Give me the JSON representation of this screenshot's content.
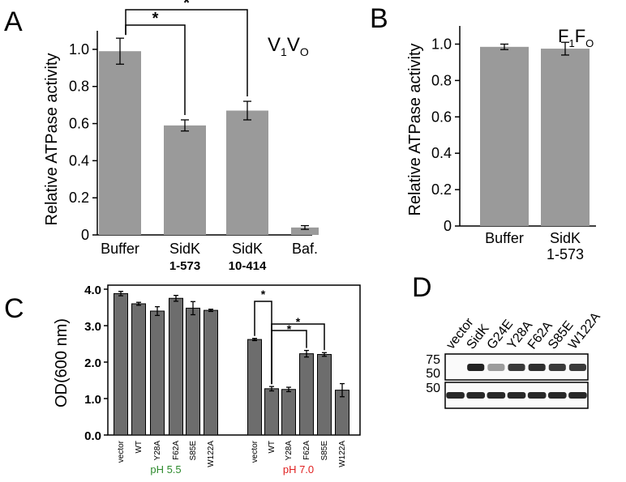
{
  "panels": {
    "A": "A",
    "B": "B",
    "C": "C",
    "D": "D"
  },
  "chart_data": [
    {
      "panel": "A",
      "type": "bar",
      "title_main": "V",
      "title_sub1": "1",
      "title_main2": "V",
      "title_sub2": "O",
      "ylabel": "Relative ATPase activity",
      "ylim": [
        0,
        1.1
      ],
      "yticks": [
        "0",
        "0.2",
        "0.4",
        "0.6",
        "0.8",
        "1.0"
      ],
      "categories": [
        "Buffer",
        "SidK",
        "SidK",
        "Baf."
      ],
      "category_sublabels": [
        "",
        "1-573",
        "10-414",
        ""
      ],
      "values": [
        0.99,
        0.59,
        0.67,
        0.04
      ],
      "errors": [
        0.07,
        0.03,
        0.05,
        0.01
      ],
      "significance": [
        {
          "from": 0,
          "to": 1,
          "label": "*"
        },
        {
          "from": 0,
          "to": 2,
          "label": "*"
        }
      ]
    },
    {
      "panel": "B",
      "type": "bar",
      "title_main": "F",
      "title_sub1": "1",
      "title_main2": "F",
      "title_sub2": "O",
      "ylabel": "Relative ATPase activity",
      "ylim": [
        0,
        1.1
      ],
      "yticks": [
        "0",
        "0.2",
        "0.4",
        "0.6",
        "0.8",
        "1.0"
      ],
      "categories": [
        "Buffer",
        "SidK"
      ],
      "category_sublabels": [
        "",
        "1-573"
      ],
      "values": [
        0.985,
        0.975
      ],
      "errors": [
        0.015,
        0.035
      ]
    },
    {
      "panel": "C",
      "type": "bar",
      "ylabel": "OD(600 nm)",
      "ylim": [
        0,
        4.0
      ],
      "yticks": [
        "0.0",
        "1.0",
        "2.0",
        "3.0",
        "4.0"
      ],
      "groups": [
        {
          "name": "pH 5.5",
          "color": "#2e8b2e",
          "categories": [
            "vector",
            "WT",
            "Y28A",
            "F62A",
            "S85E",
            "W122A"
          ],
          "values": [
            3.88,
            3.6,
            3.4,
            3.75,
            3.48,
            3.42
          ],
          "errors": [
            0.06,
            0.04,
            0.12,
            0.08,
            0.18,
            0.03
          ]
        },
        {
          "name": "pH 7.0",
          "color": "#e02020",
          "categories": [
            "vector",
            "WT",
            "Y28A",
            "F62A",
            "S85E",
            "W122A"
          ],
          "values": [
            2.62,
            1.27,
            1.25,
            2.23,
            2.21,
            1.23
          ],
          "errors": [
            0.03,
            0.06,
            0.06,
            0.09,
            0.05,
            0.18
          ]
        }
      ],
      "significance": [
        {
          "group": 1,
          "from": 0,
          "to": 1,
          "label": "*"
        },
        {
          "group": 1,
          "from": 1,
          "to": 3,
          "label": "*"
        },
        {
          "group": 1,
          "from": 1,
          "to": 4,
          "label": "*"
        }
      ]
    }
  ],
  "blot": {
    "lanes": [
      "vector",
      "SidK",
      "G24E",
      "Y28A",
      "F62A",
      "S85E",
      "W122A"
    ],
    "markers_top": [
      "75",
      "50"
    ],
    "markers_bottom": [
      "50"
    ],
    "band_intensity_top": [
      0.0,
      1.0,
      0.45,
      0.9,
      0.95,
      0.9,
      0.9
    ],
    "band_intensity_bottom": [
      1,
      1,
      1,
      1,
      1,
      1,
      1
    ]
  }
}
